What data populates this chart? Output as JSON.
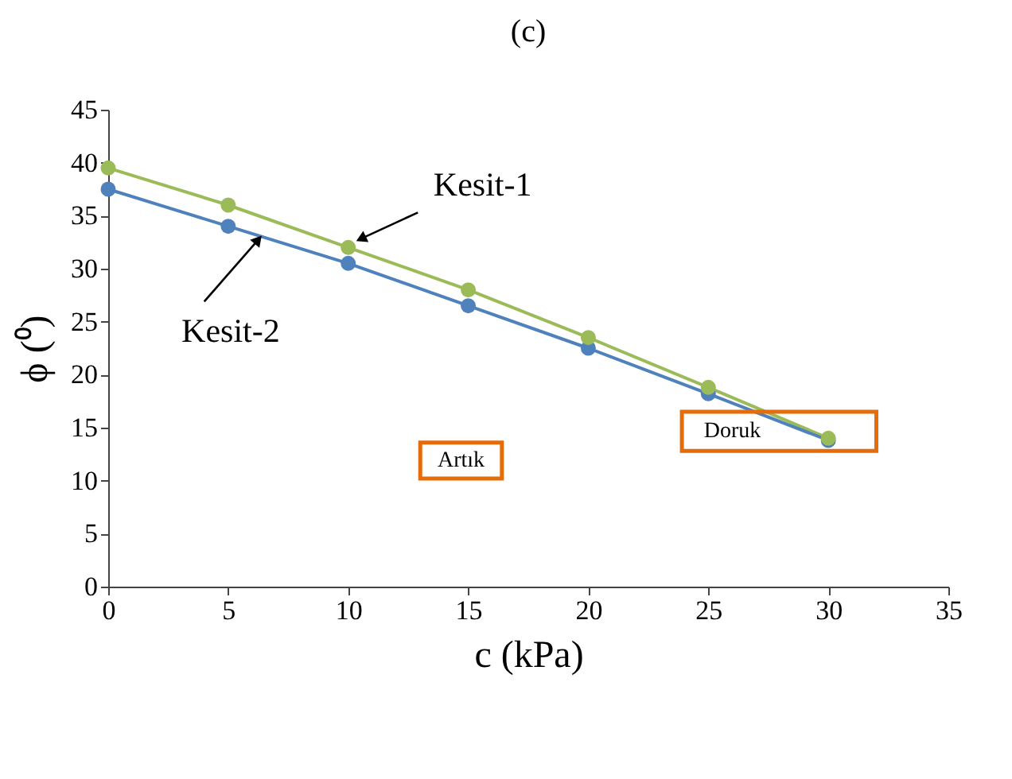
{
  "chart_data": {
    "type": "line",
    "title": "(c)",
    "xlabel": "c (kPa)",
    "ylabel": "ϕ (⁰)",
    "x": [
      0,
      5,
      10,
      15,
      20,
      25,
      30
    ],
    "series": [
      {
        "name": "Kesit-1",
        "color": "#9bbb59",
        "values": [
          39.5,
          36,
          32,
          28,
          23.5,
          18.8,
          14
        ]
      },
      {
        "name": "Kesit-2",
        "color": "#4f81bd",
        "values": [
          37.5,
          34,
          30.5,
          26.5,
          22.5,
          18.2,
          13.8
        ]
      }
    ],
    "annotations": [
      "Artık",
      "Doruk"
    ],
    "xlim": [
      0,
      35
    ],
    "xticks": [
      0,
      5,
      10,
      15,
      20,
      25,
      30,
      35
    ],
    "ylim": [
      0,
      45
    ],
    "yticks": [
      0,
      5,
      10,
      15,
      20,
      25,
      30,
      35,
      40,
      45
    ],
    "grid": false,
    "legend": false,
    "marker": "circle",
    "line_style": "solid"
  }
}
